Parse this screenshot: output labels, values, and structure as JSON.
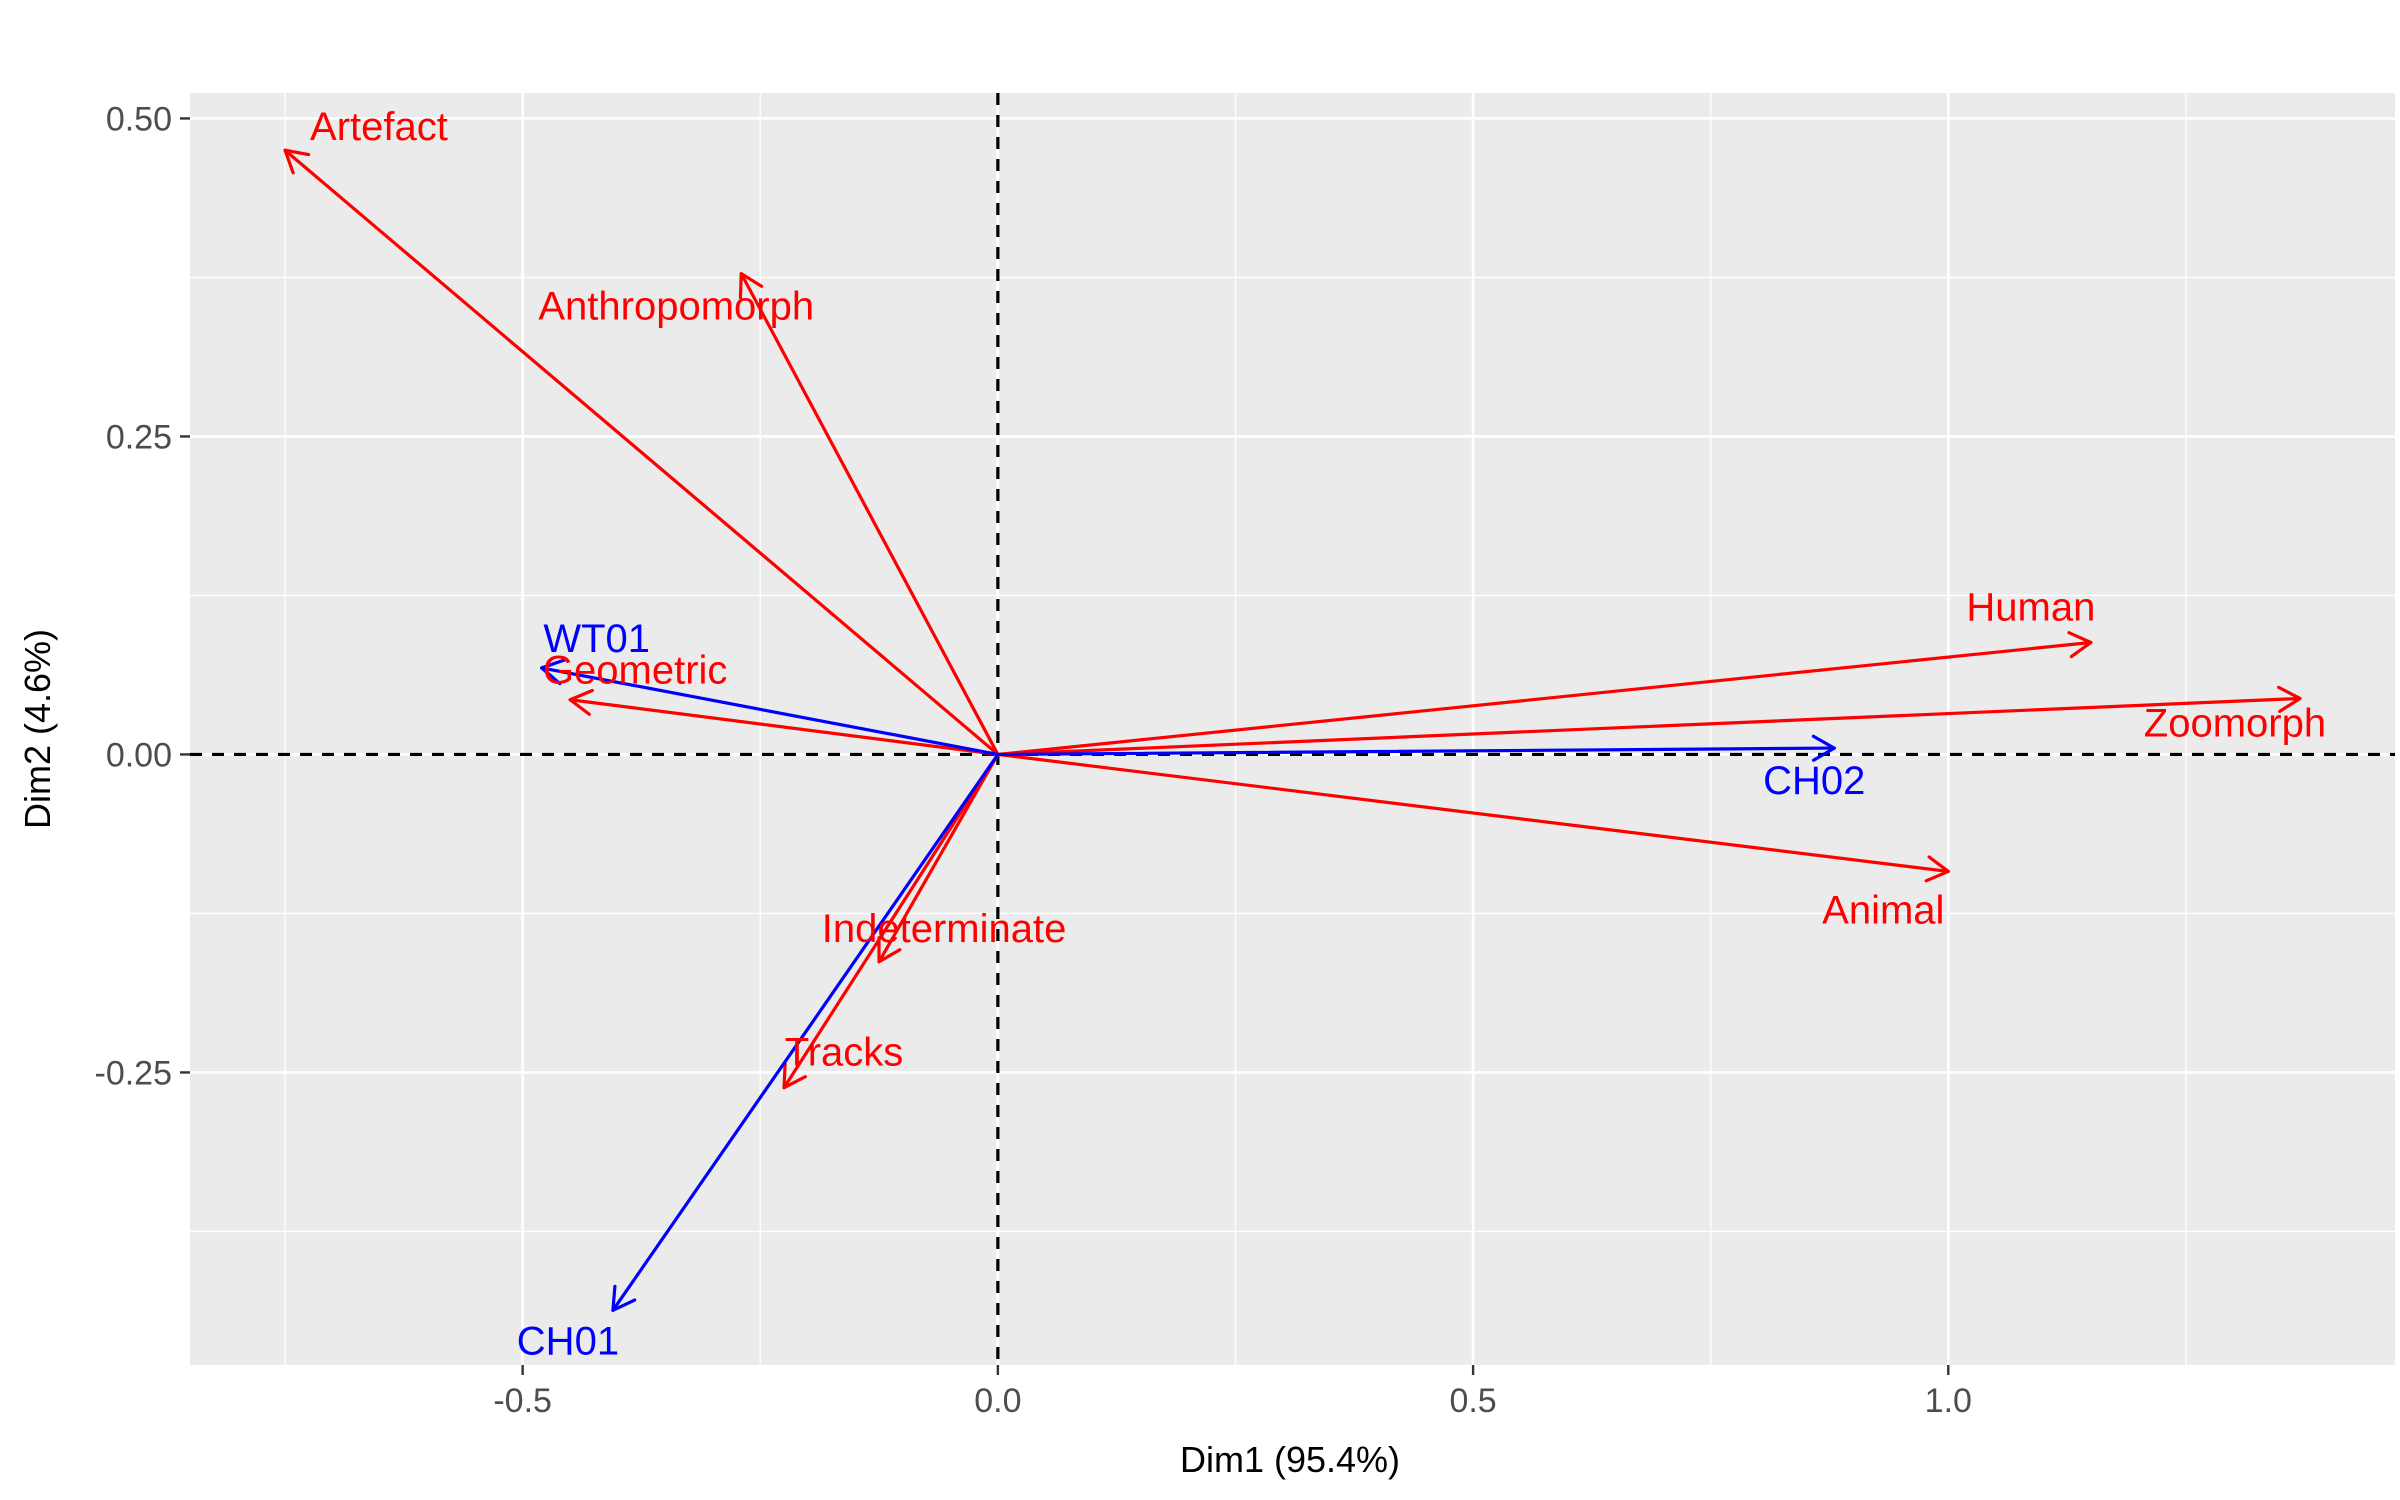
{
  "chart_data": {
    "type": "biplot",
    "xlabel": "Dim1 (95.4%)",
    "ylabel": "Dim2 (4.6%)",
    "xlim": [
      -0.85,
      1.47
    ],
    "ylim": [
      -0.48,
      0.52
    ],
    "x_ticks": [
      {
        "value": -0.5,
        "label": "-0.5"
      },
      {
        "value": 0.0,
        "label": "0.0"
      },
      {
        "value": 0.5,
        "label": "0.5"
      },
      {
        "value": 1.0,
        "label": "1.0"
      }
    ],
    "y_ticks": [
      {
        "value": 0.5,
        "label": "0.50"
      },
      {
        "value": 0.25,
        "label": "0.25"
      },
      {
        "value": 0.0,
        "label": "0.00"
      },
      {
        "value": -0.25,
        "label": "-0.25"
      }
    ],
    "grid": true,
    "reference_lines": {
      "x": 0,
      "y": 0,
      "style": "dashed"
    },
    "series": [
      {
        "name": "",
        "color": "#ff0000",
        "vectors": [
          {
            "label": "Artefact",
            "x": -0.75,
            "y": 0.475
          },
          {
            "label": "Anthropomorph",
            "x": -0.27,
            "y": 0.378
          },
          {
            "label": "Geometric",
            "x": -0.45,
            "y": 0.043
          },
          {
            "label": "Human",
            "x": 1.15,
            "y": 0.088
          },
          {
            "label": "Zoomorph",
            "x": 1.37,
            "y": 0.044
          },
          {
            "label": "Animal",
            "x": 1.0,
            "y": -0.092
          },
          {
            "label": "Indeterminate",
            "x": -0.125,
            "y": -0.163
          },
          {
            "label": "Tracks",
            "x": -0.225,
            "y": -0.262
          }
        ]
      },
      {
        "name": "",
        "color": "#0000ff",
        "vectors": [
          {
            "label": "WT01",
            "x": -0.48,
            "y": 0.068
          },
          {
            "label": "CH02",
            "x": 0.88,
            "y": 0.005
          },
          {
            "label": "CH01",
            "x": -0.405,
            "y": -0.437
          }
        ]
      }
    ]
  }
}
